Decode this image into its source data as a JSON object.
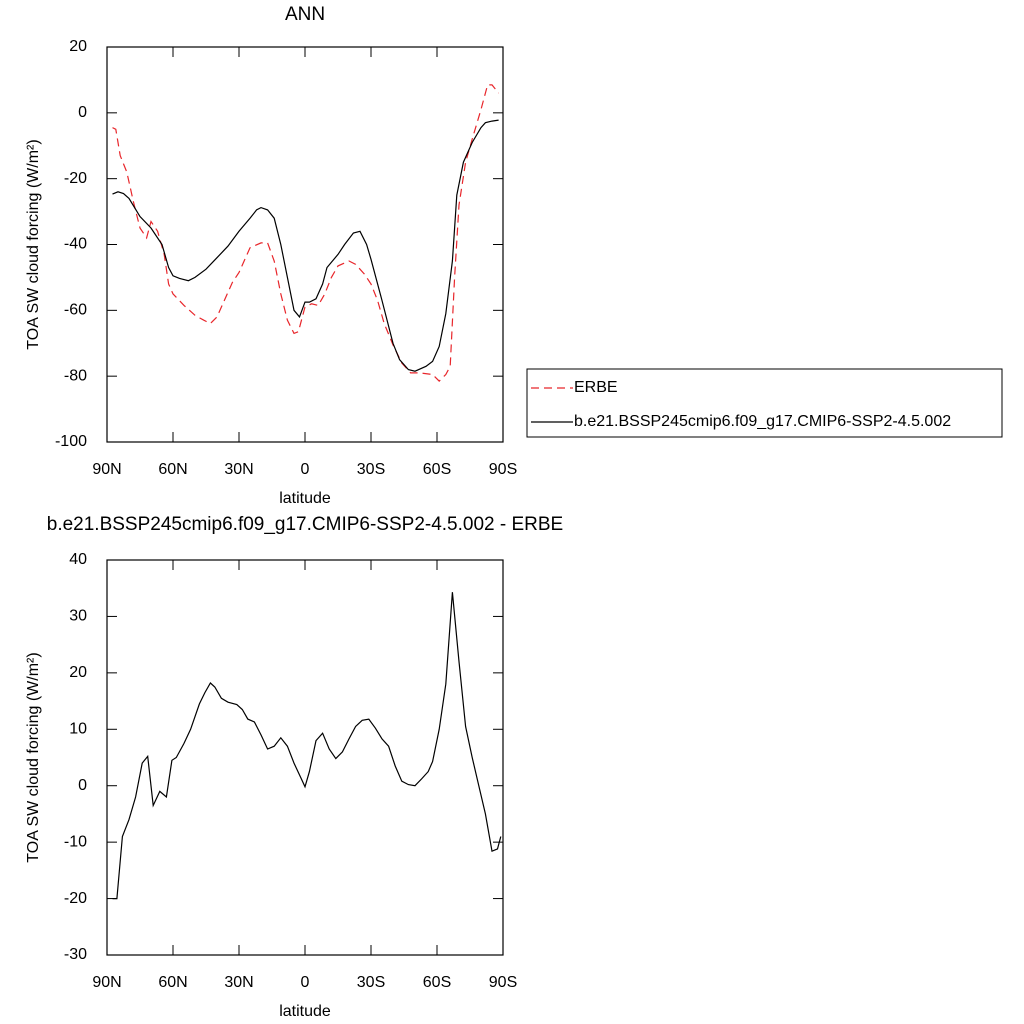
{
  "chart_data": [
    {
      "type": "line",
      "title": "ANN",
      "xlabel": "latitude",
      "ylabel": "TOA SW cloud forcing (W/m²)",
      "xlim": [
        90,
        -90
      ],
      "xticks": [
        {
          "value": 90,
          "label": "90N"
        },
        {
          "value": 60,
          "label": "60N"
        },
        {
          "value": 30,
          "label": "30N"
        },
        0,
        {
          "value": -30,
          "label": "30S"
        },
        {
          "value": -60,
          "label": "60S"
        },
        {
          "value": -90,
          "label": "90S"
        }
      ],
      "ylim": [
        -100,
        20
      ],
      "yticks": [
        -100,
        -80,
        -60,
        -40,
        -20,
        0,
        20
      ],
      "legend": "right",
      "series": [
        {
          "name": "ERBE",
          "color": "#e8262b",
          "line_style": "dashed",
          "x": [
            87.5,
            86,
            84,
            81,
            78,
            75,
            72,
            70,
            67,
            64,
            62,
            60,
            55,
            50,
            46,
            43,
            40,
            37,
            33,
            30,
            25,
            20,
            17,
            14,
            11,
            8,
            5,
            3,
            0,
            -3,
            -6,
            -9,
            -12,
            -15,
            -20,
            -23,
            -27,
            -30,
            -33,
            -36,
            -40,
            -44,
            -48,
            -52,
            -58,
            -61,
            -64,
            -66,
            -68,
            -70,
            -73,
            -76,
            -80,
            -83,
            -85,
            -88
          ],
          "values": [
            -4.5,
            -5,
            -13,
            -18,
            -27,
            -35,
            -38,
            -33,
            -36,
            -43,
            -52,
            -55,
            -58.5,
            -61.5,
            -63,
            -64,
            -62,
            -57.5,
            -51.5,
            -48.5,
            -41,
            -39.5,
            -39.5,
            -45,
            -55,
            -63,
            -67,
            -66.5,
            -59,
            -58,
            -58.5,
            -55,
            -50,
            -46.5,
            -45,
            -46,
            -49,
            -52,
            -57,
            -64,
            -70.5,
            -76,
            -79,
            -79,
            -79.5,
            -81.5,
            -79.5,
            -77,
            -50,
            -28,
            -15,
            -8,
            1,
            8.5,
            8.5,
            6
          ]
        },
        {
          "name": "b.e21.BSSP245cmip6.f09_g17.CMIP6-SSP2-4.5.002",
          "color": "#000000",
          "line_style": "solid",
          "x": [
            87.5,
            85,
            82.5,
            80,
            75,
            70,
            65,
            62,
            60,
            57,
            53,
            50,
            45,
            40,
            35,
            30,
            25,
            22,
            20,
            17,
            14,
            11,
            8,
            5,
            2.5,
            0,
            -2,
            -5,
            -8,
            -10,
            -15,
            -18,
            -22,
            -25,
            -28,
            -30,
            -35,
            -40,
            -43,
            -47,
            -50,
            -55,
            -58,
            -61,
            -64,
            -67,
            -69,
            -72,
            -76,
            -80,
            -82,
            -85,
            -88
          ],
          "values": [
            -24.7,
            -24,
            -24.5,
            -26,
            -31.5,
            -35,
            -40,
            -47,
            -49.5,
            -50.3,
            -51,
            -50,
            -47.5,
            -44,
            -40.5,
            -36,
            -32,
            -29.5,
            -28.8,
            -29.5,
            -32,
            -40,
            -50,
            -60,
            -62,
            -57.5,
            -57.5,
            -56.5,
            -52,
            -47,
            -43,
            -40,
            -36.5,
            -36,
            -40,
            -44.5,
            -57,
            -70,
            -75,
            -78,
            -78.5,
            -77,
            -75.5,
            -71,
            -61,
            -45,
            -25,
            -15,
            -9,
            -4.5,
            -3,
            -2.5,
            -2.2
          ]
        }
      ]
    },
    {
      "type": "line",
      "title": "b.e21.BSSP245cmip6.f09_g17.CMIP6-SSP2-4.5.002 - ERBE",
      "xlabel": "latitude",
      "ylabel": "TOA SW cloud forcing (W/m²)",
      "xlim": [
        90,
        -90
      ],
      "xticks": [
        {
          "value": 90,
          "label": "90N"
        },
        {
          "value": 60,
          "label": "60N"
        },
        {
          "value": 30,
          "label": "30N"
        },
        0,
        {
          "value": -30,
          "label": "30S"
        },
        {
          "value": -60,
          "label": "60S"
        },
        {
          "value": -90,
          "label": "90S"
        }
      ],
      "ylim": [
        -30,
        40
      ],
      "yticks": [
        -30,
        -20,
        -10,
        0,
        10,
        20,
        30,
        40
      ],
      "series": [
        {
          "color": "#000000",
          "line_style": "solid",
          "x": [
            87.5,
            85.5,
            83,
            80,
            77,
            74,
            71.5,
            69,
            66,
            63,
            60.5,
            58.5,
            55,
            52,
            48,
            45.5,
            43,
            41,
            38,
            35,
            31,
            28.5,
            26,
            23,
            20,
            17,
            14,
            11,
            8,
            5,
            2,
            0,
            -2,
            -5,
            -8,
            -11,
            -14,
            -17,
            -20,
            -23,
            -26,
            -29,
            -32,
            -35,
            -38,
            -41,
            -44,
            -47,
            -50,
            -53,
            -56,
            -58,
            -61,
            -64,
            -67,
            -70,
            -73,
            -76,
            -79,
            -82,
            -85,
            -87.5,
            -89
          ],
          "values": [
            -20,
            -20,
            -9,
            -6,
            -2,
            4,
            5.2,
            -3.5,
            -1,
            -2,
            4.5,
            5,
            7.5,
            10,
            14.5,
            16.5,
            18.2,
            17.5,
            15.5,
            14.8,
            14.4,
            13.5,
            11.8,
            11.3,
            9,
            6.5,
            7,
            8.5,
            7,
            4,
            1.5,
            -0.2,
            2.5,
            8,
            9.3,
            6.5,
            4.8,
            6,
            8.3,
            10.5,
            11.6,
            11.8,
            10.2,
            8.3,
            7,
            3.5,
            0.8,
            0.2,
            0,
            1.2,
            2.5,
            4.3,
            10,
            18,
            34.3,
            22,
            10.5,
            5,
            0,
            -5,
            -11.6,
            -11.2,
            -9
          ]
        }
      ]
    }
  ]
}
